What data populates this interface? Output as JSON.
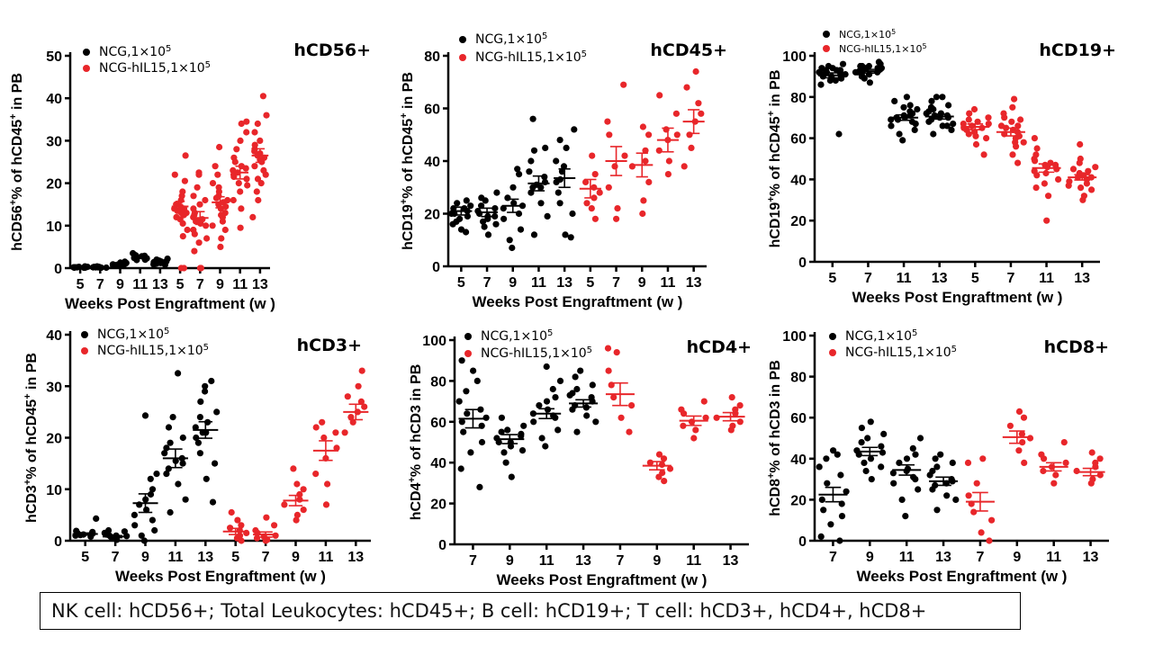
{
  "colors": {
    "group_a": "#000000",
    "group_b": "#e8262a"
  },
  "footer": {
    "text": "NK cell:  hCD56+;   Total Leukocytes:  hCD45+;  B cell:  hCD19+;  T cell:  hCD3+, hCD4+, hCD8+"
  },
  "chart_data": [
    {
      "type": "scatter",
      "title": "hCD56+",
      "ylabel_parts": [
        "hCD56",
        "+",
        "% of hCD45",
        "+",
        " in PB"
      ],
      "xlabel": "Weeks Post Engraftment  (w )",
      "ylim": [
        0,
        50
      ],
      "yticks": [
        0,
        10,
        20,
        30,
        40,
        50
      ],
      "categories": [
        "5",
        "7",
        "9",
        "11",
        "13",
        "5",
        "7",
        "9",
        "11",
        "13"
      ],
      "colors": [
        "group_a",
        "group_a",
        "group_a",
        "group_a",
        "group_a",
        "group_b",
        "group_b",
        "group_b",
        "group_b",
        "group_b"
      ],
      "legend": [
        {
          "color": "group_a",
          "label": "NCG,1×10",
          "sup": "5"
        },
        {
          "color": "group_b",
          "label": "NCG-hIL15,1×10",
          "sup": "5"
        }
      ],
      "means": [
        0.2,
        0.2,
        1.0,
        2.6,
        1.4,
        14.5,
        11.8,
        15.5,
        22.5,
        26.5
      ],
      "sems": [
        0.1,
        0.1,
        0.2,
        0.3,
        0.3,
        1.2,
        1.5,
        1.3,
        1.5,
        1.6
      ],
      "points": [
        [
          0.1,
          0.2,
          0.3,
          0.1,
          0.2,
          0.4,
          0.1,
          0.3,
          0.2,
          0.1
        ],
        [
          0.1,
          0.2,
          0.4,
          0.1,
          0.3,
          0.2,
          0.1,
          0.2,
          0.3
        ],
        [
          0.5,
          0.8,
          1.2,
          0.6,
          1.5,
          0.9,
          1.1,
          0.7,
          1.3,
          1.0,
          0.8
        ],
        [
          1.9,
          2.3,
          2.8,
          3.2,
          2.5,
          2.1,
          2.9,
          3.5,
          2.4,
          2.7,
          2.0,
          3.0
        ],
        [
          0.8,
          1.2,
          1.6,
          2.0,
          1.0,
          1.4,
          1.8,
          0.9,
          1.5,
          1.3,
          2.2,
          1.1,
          1.7
        ],
        [
          0,
          0,
          7.5,
          9,
          10.5,
          12,
          12.5,
          13,
          13.5,
          14,
          14.5,
          15,
          15,
          16,
          17,
          18,
          20.5,
          22,
          26.5,
          14,
          13,
          11.5
        ],
        [
          0,
          0,
          4,
          6,
          7,
          8,
          9,
          10,
          10.5,
          11,
          11.5,
          12,
          12.5,
          13,
          14,
          15,
          16,
          17,
          19,
          22,
          22.5,
          11
        ],
        [
          5,
          7,
          9,
          10,
          11,
          12,
          13,
          14,
          15,
          15.5,
          16,
          17,
          18,
          19,
          20,
          22,
          24,
          28.5,
          14.5,
          16.5,
          12.5
        ],
        [
          9.5,
          14,
          16,
          18,
          19.5,
          20,
          21,
          22,
          22.5,
          23,
          24,
          25,
          26,
          28,
          30,
          32,
          34,
          34.5,
          21.5,
          23.5
        ],
        [
          12,
          16,
          18,
          20,
          22,
          23,
          24,
          25,
          26,
          26.5,
          27,
          28,
          29,
          30,
          32,
          34,
          36,
          40.5,
          25.5,
          27.5,
          21
        ]
      ]
    },
    {
      "type": "scatter",
      "title": "hCD45+",
      "ylabel_parts": [
        "hCD19",
        "+",
        "% of hCD45",
        "+",
        " in PB"
      ],
      "xlabel": "Weeks Post Engraftment (w )",
      "ylim": [
        0,
        80
      ],
      "yticks": [
        0,
        20,
        40,
        60,
        80
      ],
      "categories": [
        "5",
        "7",
        "9",
        "11",
        "13",
        "5",
        "7",
        "9",
        "11",
        "13"
      ],
      "colors": [
        "group_a",
        "group_a",
        "group_a",
        "group_a",
        "group_a",
        "group_b",
        "group_b",
        "group_b",
        "group_b",
        "group_b"
      ],
      "legend": [
        {
          "color": "group_a",
          "label": "NCG,1×10",
          "sup": "5"
        },
        {
          "color": "group_b",
          "label": "NCG-hIL15,1×10",
          "sup": "5"
        }
      ],
      "means": [
        21,
        20.5,
        23,
        31.5,
        33.5,
        29.5,
        40,
        38.5,
        48,
        55
      ],
      "sems": [
        1.5,
        1.6,
        2.5,
        2.8,
        3.5,
        3.5,
        5.5,
        4.5,
        4.5,
        4.5
      ],
      "points": [
        [
          13,
          16,
          18,
          19,
          20,
          21,
          22,
          23,
          24,
          25,
          20,
          17,
          22,
          14
        ],
        [
          12,
          15,
          17,
          19,
          20,
          21,
          22,
          23,
          25,
          28,
          26,
          18,
          16,
          19
        ],
        [
          7,
          10,
          14,
          18,
          20,
          22,
          24,
          26,
          30,
          35,
          37,
          23
        ],
        [
          12,
          19,
          24,
          28,
          30,
          32,
          34,
          36,
          40,
          44,
          45,
          56,
          31,
          30
        ],
        [
          11,
          12,
          20,
          24,
          28,
          32,
          36,
          40,
          45,
          48,
          52,
          33,
          38
        ],
        [
          18,
          22,
          26,
          28,
          30,
          32,
          35,
          42,
          24
        ],
        [
          18,
          22,
          30,
          38,
          42,
          50,
          55,
          69
        ],
        [
          20,
          25,
          32,
          38,
          40,
          44,
          50,
          53
        ],
        [
          35,
          40,
          44,
          48,
          50,
          52,
          58,
          65
        ],
        [
          38,
          45,
          50,
          55,
          58,
          62,
          68,
          74
        ]
      ]
    },
    {
      "type": "scatter",
      "title": "hCD19+",
      "ylabel_parts": [
        "hCD19",
        "+",
        "% of hCD45",
        "+",
        " in PB"
      ],
      "xlabel": "Weeks Post Engraftment (w )",
      "ylim": [
        0,
        100
      ],
      "yticks": [
        0,
        20,
        40,
        60,
        80,
        100
      ],
      "categories": [
        "5",
        "7",
        "11",
        "13",
        "5",
        "7",
        "11",
        "13"
      ],
      "colors": [
        "group_a",
        "group_a",
        "group_a",
        "group_a",
        "group_b",
        "group_b",
        "group_b",
        "group_b"
      ],
      "legend": [
        {
          "color": "group_a",
          "label": "NCG,1×10",
          "sup": "5"
        },
        {
          "color": "group_b",
          "label": "NCG-hIL15,1×10",
          "sup": "5"
        }
      ],
      "means": [
        90.5,
        92.5,
        70,
        70.5,
        65.5,
        63,
        45.5,
        41
      ],
      "sems": [
        1.2,
        0.9,
        1.3,
        1.2,
        1.4,
        1.9,
        2.0,
        1.3
      ],
      "points": [
        [
          62,
          86,
          88,
          89,
          90,
          90,
          91,
          91,
          92,
          92,
          92,
          93,
          93,
          94,
          94,
          95,
          88,
          89,
          90,
          91,
          93,
          96
        ],
        [
          87,
          89,
          90,
          91,
          92,
          92,
          93,
          93,
          94,
          94,
          95,
          95,
          96,
          97,
          90,
          91,
          92,
          93,
          94,
          95
        ],
        [
          59,
          62,
          64,
          66,
          68,
          69,
          70,
          70,
          71,
          72,
          73,
          74,
          75,
          76,
          78,
          80,
          67,
          69,
          71
        ],
        [
          62,
          64,
          66,
          68,
          69,
          70,
          71,
          72,
          73,
          74,
          76,
          78,
          80,
          80,
          70,
          71,
          67,
          72,
          75,
          66
        ],
        [
          52,
          57,
          60,
          62,
          64,
          65,
          66,
          67,
          68,
          69,
          70,
          72,
          74,
          63,
          65,
          61,
          67
        ],
        [
          48,
          52,
          56,
          58,
          60,
          62,
          63,
          64,
          65,
          66,
          68,
          70,
          72,
          75,
          79,
          58,
          61,
          66,
          69
        ],
        [
          20,
          32,
          36,
          38,
          40,
          42,
          44,
          45,
          46,
          47,
          48,
          50,
          52,
          55,
          60,
          43,
          47,
          49
        ],
        [
          30,
          32,
          35,
          37,
          38,
          40,
          41,
          42,
          43,
          44,
          46,
          48,
          50,
          57,
          39,
          41,
          45,
          36
        ]
      ]
    },
    {
      "type": "scatter",
      "title": "hCD3+",
      "ylabel_parts": [
        "hCD3",
        "+",
        "% of hCD45",
        "+",
        " in PB"
      ],
      "xlabel": "Weeks Post Engraftment (w )",
      "ylim": [
        0,
        40
      ],
      "yticks": [
        0,
        10,
        20,
        30,
        40
      ],
      "categories": [
        "5",
        "7",
        "9",
        "11",
        "13",
        "5",
        "7",
        "9",
        "11",
        "13"
      ],
      "colors": [
        "group_a",
        "group_a",
        "group_a",
        "group_a",
        "group_a",
        "group_b",
        "group_b",
        "group_b",
        "group_b",
        "group_b"
      ],
      "legend": [
        {
          "color": "group_a",
          "label": "NCG,1×10",
          "sup": "5"
        },
        {
          "color": "group_b",
          "label": "NCG-hIL15,1×10",
          "sup": "5"
        }
      ],
      "means": [
        1.3,
        0.8,
        7.3,
        16,
        21.5,
        1.8,
        1.2,
        7.8,
        17.5,
        25
      ],
      "sems": [
        0.2,
        0.2,
        1.8,
        1.8,
        1.6,
        0.6,
        0.5,
        1.0,
        1.9,
        1.5
      ],
      "points": [
        [
          0.8,
          1.0,
          1.2,
          1.4,
          1.5,
          1.7,
          1.9,
          4.3,
          1.1,
          1.3
        ],
        [
          0.2,
          0.5,
          0.8,
          1.0,
          1.2,
          1.5,
          1.8,
          2.0,
          0.6,
          0.9,
          1.1
        ],
        [
          0,
          1,
          2,
          3,
          4,
          5,
          6,
          7,
          8,
          10,
          12,
          13,
          24.3,
          9
        ],
        [
          5.5,
          8,
          11,
          13,
          14,
          15,
          16,
          17,
          18,
          19,
          20,
          22,
          24,
          32.5,
          15.5
        ],
        [
          7.5,
          12,
          15,
          17,
          19,
          20,
          21,
          22,
          23,
          24,
          25,
          27,
          29,
          30,
          31,
          21
        ],
        [
          0,
          0.5,
          1,
          1.5,
          2,
          2.5,
          3,
          4,
          5.5
        ],
        [
          0,
          0.2,
          0.5,
          0.8,
          1,
          1.5,
          2,
          3,
          4.5
        ],
        [
          4,
          5,
          6,
          7,
          8,
          9,
          10,
          11,
          14
        ],
        [
          7,
          11,
          13,
          16,
          18,
          20,
          21,
          22,
          23
        ],
        [
          21,
          23,
          24,
          25,
          26,
          27,
          28,
          30,
          33
        ]
      ]
    },
    {
      "type": "scatter",
      "title": "hCD4+",
      "ylabel_parts": [
        "hCD4",
        "+",
        "% of hCD3 in PB",
        "",
        ""
      ],
      "xlabel": "Weeks Post Engraftment (w )",
      "ylim": [
        0,
        100
      ],
      "yticks": [
        0,
        20,
        40,
        60,
        80,
        100
      ],
      "categories": [
        "7",
        "9",
        "11",
        "13",
        "7",
        "9",
        "11",
        "13"
      ],
      "colors": [
        "group_a",
        "group_a",
        "group_a",
        "group_a",
        "group_b",
        "group_b",
        "group_b",
        "group_b"
      ],
      "legend": [
        {
          "color": "group_a",
          "label": "NCG,1×10",
          "sup": "5"
        },
        {
          "color": "group_b",
          "label": "NCG-hIL15,1×10",
          "sup": "5"
        }
      ],
      "means": [
        61.5,
        51.5,
        64,
        69,
        73.5,
        38.5,
        60.5,
        62.5
      ],
      "sems": [
        4.5,
        2.2,
        2.4,
        1.8,
        5.5,
        2.0,
        2.3,
        2.0
      ],
      "points": [
        [
          28,
          37,
          45,
          50,
          55,
          58,
          60,
          62,
          64,
          66,
          70,
          75,
          80,
          85,
          90
        ],
        [
          33,
          40,
          45,
          48,
          50,
          52,
          54,
          55,
          56,
          58,
          62,
          50,
          46,
          53
        ],
        [
          48,
          52,
          56,
          60,
          62,
          64,
          66,
          68,
          70,
          72,
          76,
          80,
          87,
          63
        ],
        [
          55,
          60,
          63,
          66,
          68,
          70,
          72,
          73,
          74,
          76,
          78,
          82,
          85,
          67
        ],
        [
          55,
          62,
          68,
          72,
          78,
          85,
          94,
          96
        ],
        [
          31,
          33,
          35,
          37,
          39,
          40,
          42,
          44
        ],
        [
          52,
          56,
          58,
          60,
          62,
          64,
          66,
          70
        ],
        [
          56,
          58,
          60,
          62,
          64,
          66,
          68,
          72
        ]
      ]
    },
    {
      "type": "scatter",
      "title": "hCD8+",
      "ylabel_parts": [
        "hCD8",
        "+",
        "% of hCD3 in PB",
        "",
        ""
      ],
      "xlabel": "Weeks Post Engraftment  (w )",
      "ylim": [
        0,
        100
      ],
      "yticks": [
        0,
        20,
        40,
        60,
        80,
        100
      ],
      "categories": [
        "7",
        "9",
        "11",
        "13",
        "7",
        "9",
        "11",
        "13"
      ],
      "colors": [
        "group_a",
        "group_a",
        "group_a",
        "group_a",
        "group_b",
        "group_b",
        "group_b",
        "group_b"
      ],
      "legend": [
        {
          "color": "group_a",
          "label": "NCG,1×10",
          "sup": "5"
        },
        {
          "color": "group_b",
          "label": "NCG-hIL15,1×10",
          "sup": "5"
        }
      ],
      "means": [
        22.5,
        43.5,
        34.5,
        29,
        19,
        50.5,
        36,
        33.5
      ],
      "sems": [
        3.5,
        2.0,
        2.5,
        2.0,
        4.5,
        3.0,
        2.0,
        1.8
      ],
      "points": [
        [
          0,
          2,
          8,
          12,
          15,
          18,
          20,
          24,
          28,
          32,
          36,
          40,
          42,
          44
        ],
        [
          30,
          34,
          38,
          40,
          42,
          44,
          46,
          48,
          50,
          52,
          55,
          58,
          43,
          36
        ],
        [
          12,
          20,
          25,
          28,
          30,
          33,
          35,
          38,
          40,
          42,
          45,
          50,
          34,
          31
        ],
        [
          15,
          20,
          22,
          25,
          27,
          29,
          30,
          32,
          34,
          36,
          38,
          40,
          42,
          28
        ],
        [
          0,
          4,
          10,
          14,
          18,
          22,
          28,
          38,
          40
        ],
        [
          38,
          44,
          48,
          50,
          52,
          56,
          60,
          63
        ],
        [
          28,
          32,
          34,
          36,
          38,
          40,
          42,
          48
        ],
        [
          28,
          30,
          32,
          34,
          36,
          38,
          40,
          43
        ]
      ]
    }
  ]
}
